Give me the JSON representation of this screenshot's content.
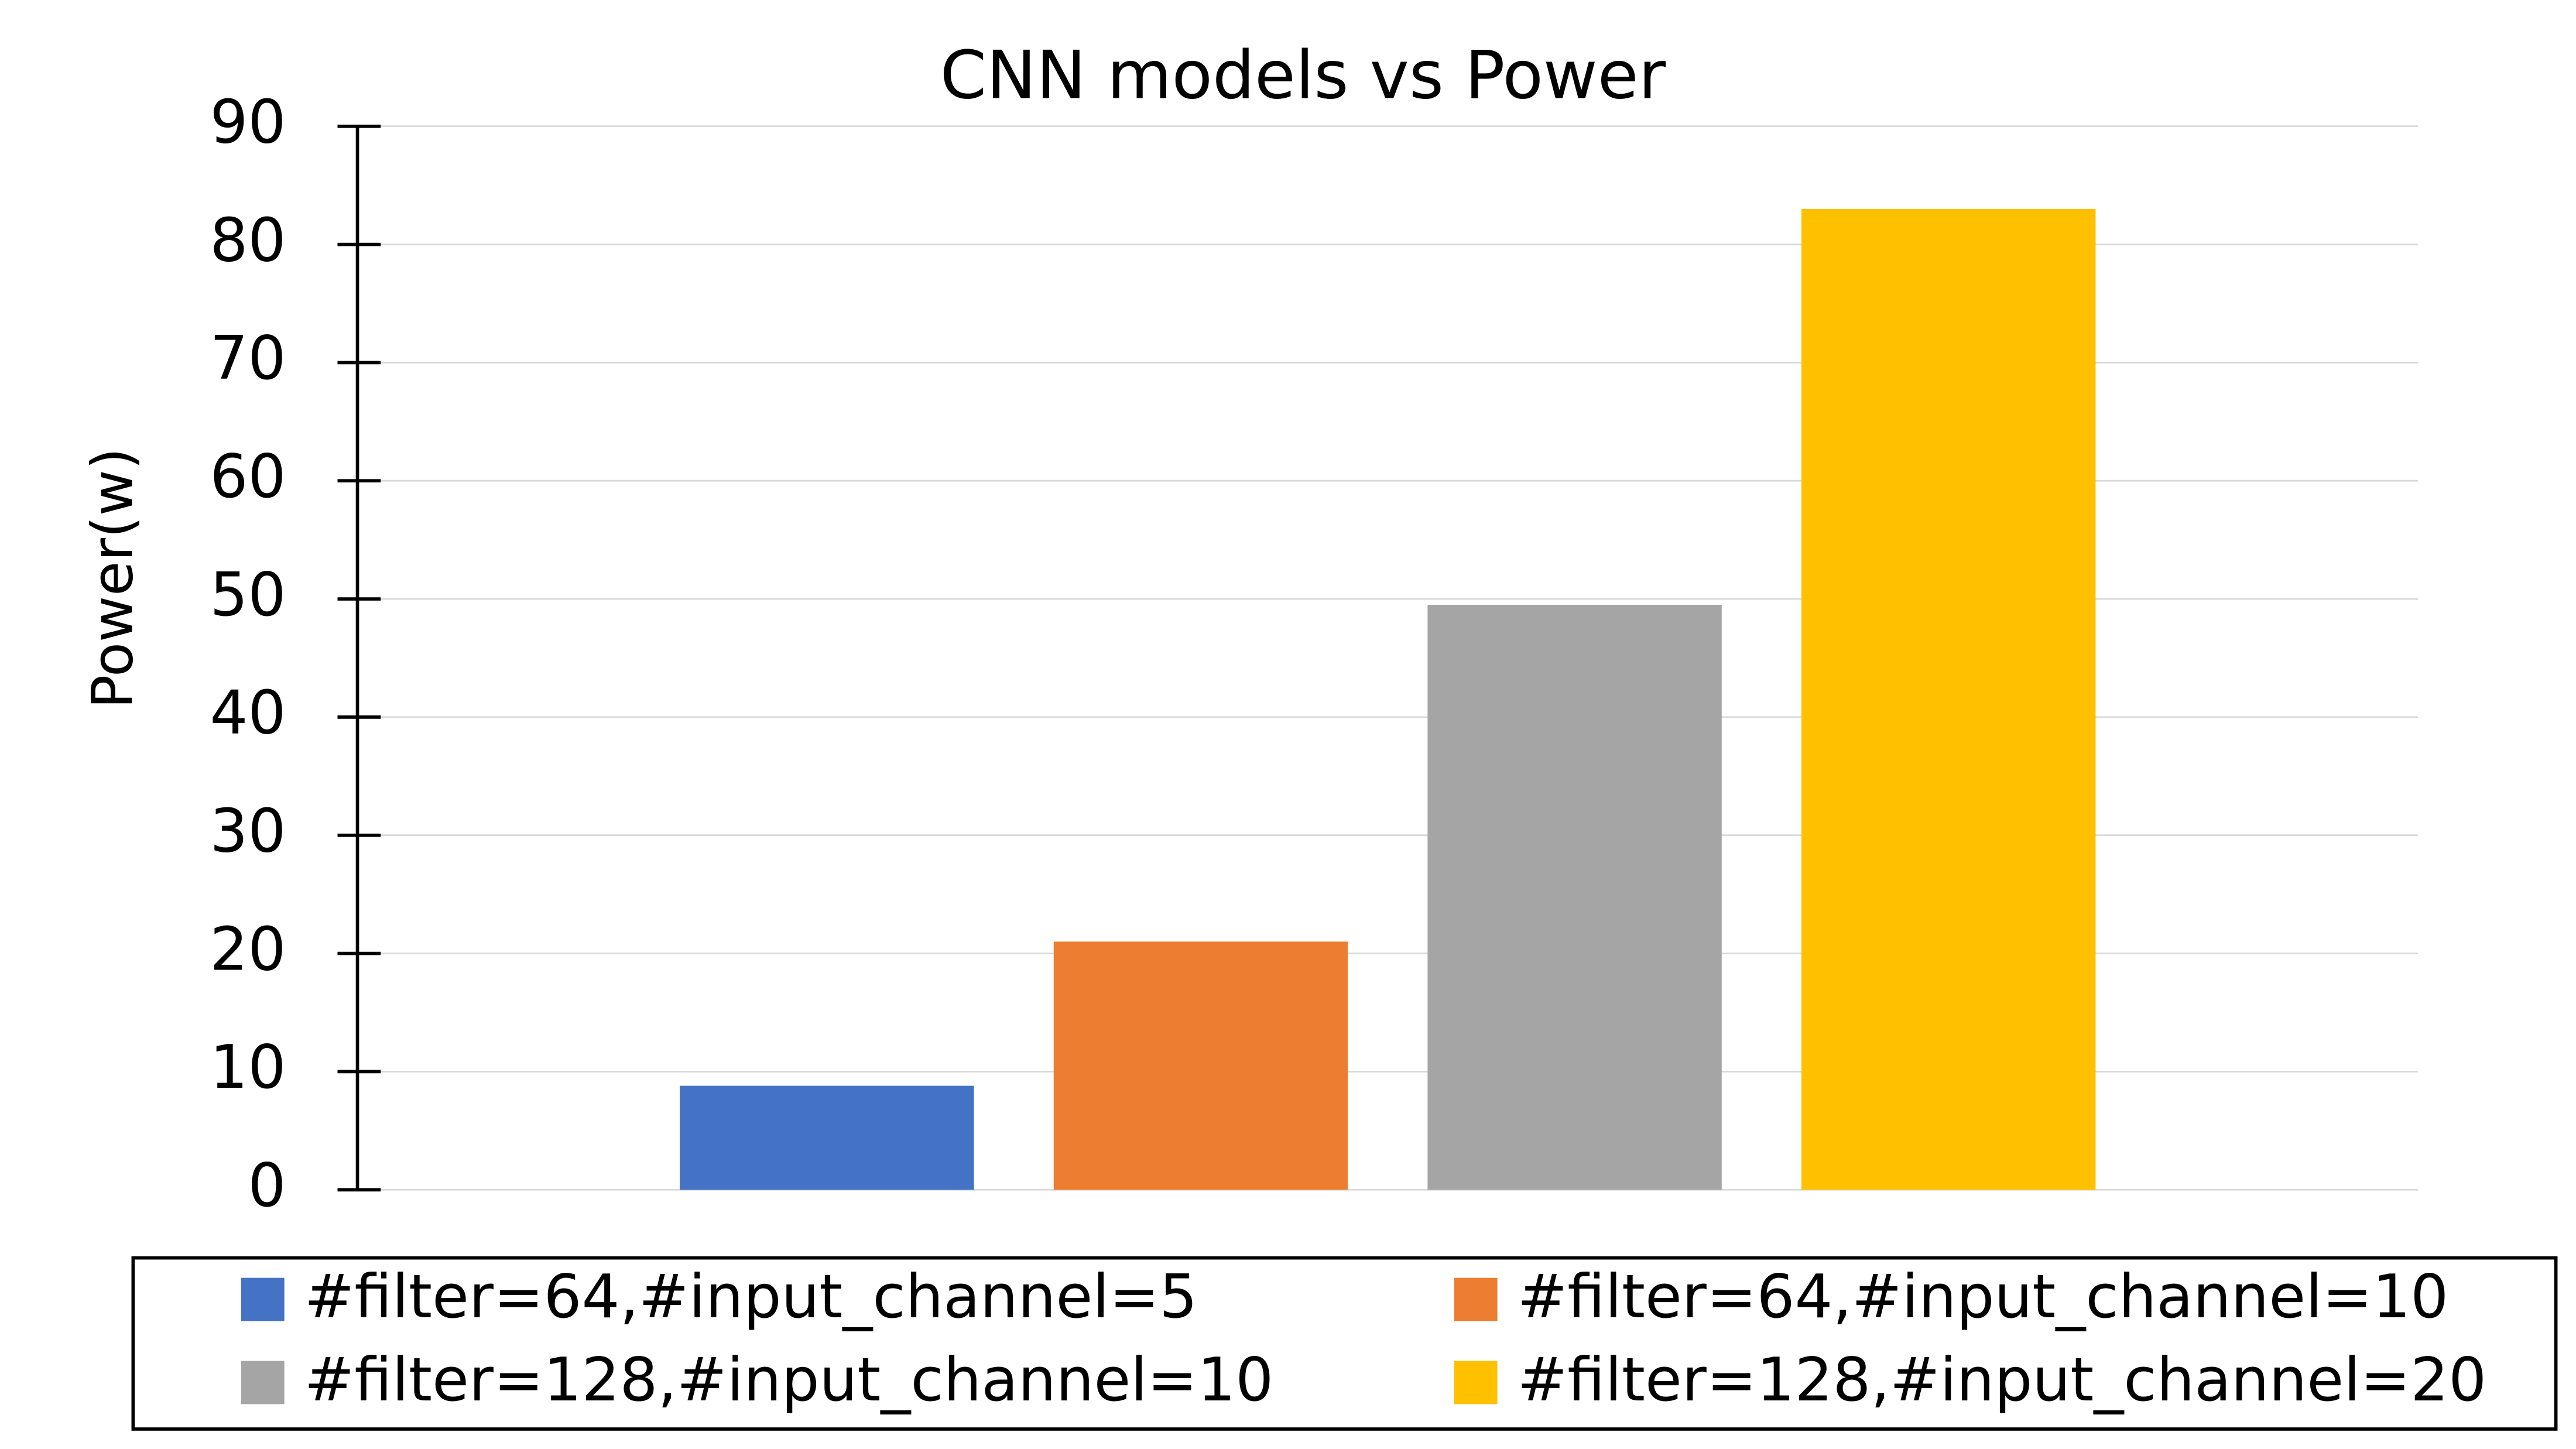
{
  "chart_data": {
    "type": "bar",
    "title": "CNN models vs Power",
    "y_label": "Power(w)",
    "categories": [
      null
    ],
    "series": [
      {
        "name": "#filter=64,#input_channel=5",
        "color": "#4472c4",
        "values": [
          8.8
        ]
      },
      {
        "name": "#filter=64,#input_channel=10",
        "color": "#ed7d31",
        "values": [
          21
        ]
      },
      {
        "name": "#filter=128,#input_channel=10",
        "color": "#a5a5a5",
        "values": [
          49.5
        ]
      },
      {
        "name": "#filter=128,#input_channel=20",
        "color": "#ffc000",
        "values": [
          83
        ]
      }
    ],
    "ylim": [
      0,
      90
    ],
    "yticks": [
      0,
      10,
      20,
      30,
      40,
      50,
      60,
      70,
      80,
      90
    ],
    "grid": true,
    "legend": "bottom"
  }
}
